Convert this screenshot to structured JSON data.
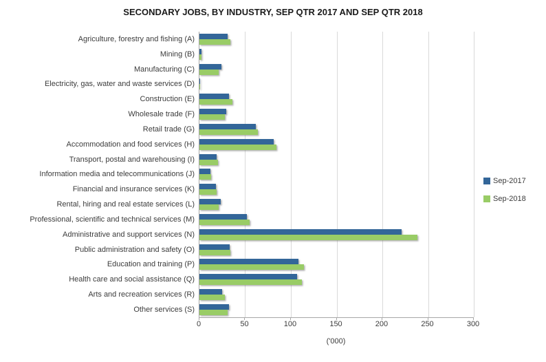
{
  "chart_data": {
    "type": "bar",
    "orientation": "horizontal",
    "title": "SECONDARY JOBS, BY INDUSTRY, SEP QTR 2017 AND SEP QTR 2018",
    "xlabel": "('000)",
    "xlim": [
      0,
      300
    ],
    "x_ticks": [
      0,
      50,
      100,
      150,
      200,
      250,
      300
    ],
    "grid": "vertical-gridlines-every-50",
    "legend_position": "right",
    "categories": [
      "Agriculture, forestry and fishing (A)",
      "Mining (B)",
      "Manufacturing (C)",
      "Electricity, gas, water and waste services (D)",
      "Construction (E)",
      "Wholesale trade (F)",
      "Retail trade (G)",
      "Accommodation and food services (H)",
      "Transport, postal and warehousing (I)",
      "Information media and telecommunications (J)",
      "Financial and insurance services (K)",
      "Rental, hiring and real estate services (L)",
      "Professional, scientific and technical services (M)",
      "Administrative and support services (N)",
      "Public administration and safety (O)",
      "Education and training (P)",
      "Health care and social assistance (Q)",
      "Arts and recreation services (R)",
      "Other services (S)"
    ],
    "series": [
      {
        "name": "Sep-2017",
        "color": "#336699",
        "values": [
          31,
          2,
          24,
          1,
          32,
          29,
          62,
          81,
          19,
          12,
          18,
          23,
          52,
          221,
          33,
          108,
          107,
          25,
          32
        ]
      },
      {
        "name": "Sep-2018",
        "color": "#99CC66",
        "values": [
          34,
          2,
          21,
          1,
          36,
          28,
          64,
          84,
          20,
          13,
          19,
          21,
          55,
          238,
          34,
          114,
          112,
          28,
          31
        ]
      }
    ],
    "colors": {
      "gridline": "#d9d9d9",
      "axis_line": "#a6a6a6",
      "text": "#3b3b3b"
    }
  }
}
